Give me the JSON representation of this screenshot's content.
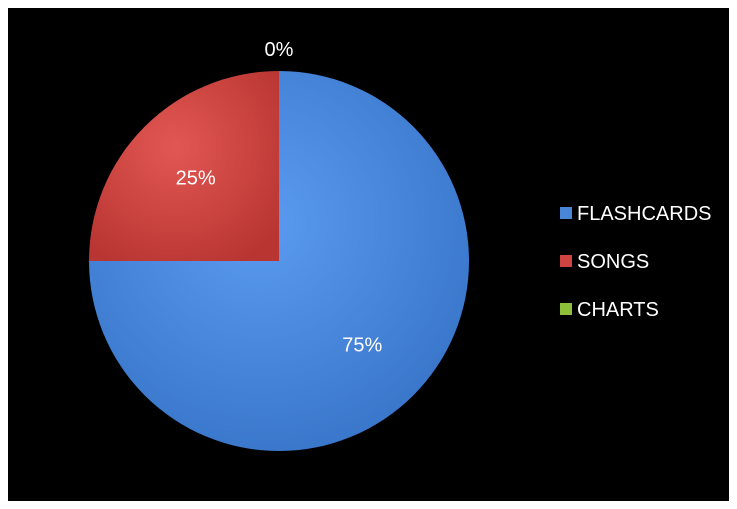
{
  "chart_data": {
    "type": "pie",
    "categories": [
      "FLASHCARDS",
      "SONGS",
      "CHARTS"
    ],
    "values": [
      75,
      25,
      0
    ],
    "data_labels": [
      "75%",
      "25%",
      "0%"
    ],
    "colors": [
      "#4a86d8",
      "#cf4440",
      "#8fbf3a"
    ],
    "legend_position": "right",
    "background": "#000000"
  }
}
